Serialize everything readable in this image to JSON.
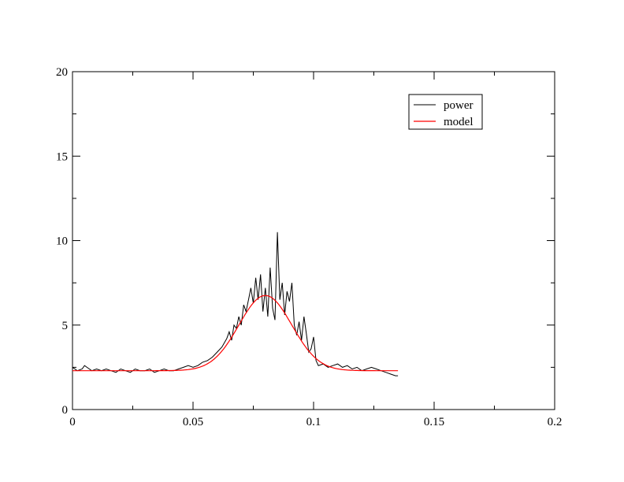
{
  "chart_data": {
    "type": "line",
    "title": "",
    "xlabel": "",
    "ylabel": "",
    "xlim": [
      0,
      0.2
    ],
    "ylim": [
      0,
      20
    ],
    "x_ticks": [
      0,
      0.05,
      0.1,
      0.15,
      0.2
    ],
    "x_tick_labels": [
      "0",
      "0.05",
      "0.1",
      "0.15",
      "0.2"
    ],
    "y_ticks": [
      0,
      5,
      10,
      15,
      20
    ],
    "y_tick_labels": [
      "0",
      "5",
      "10",
      "15",
      "20"
    ],
    "grid": false,
    "legend_position": "top-right",
    "series": [
      {
        "name": "power",
        "color": "#000000",
        "x": [
          0,
          0.002,
          0.004,
          0.005,
          0.006,
          0.008,
          0.01,
          0.012,
          0.014,
          0.016,
          0.018,
          0.02,
          0.022,
          0.024,
          0.026,
          0.028,
          0.03,
          0.032,
          0.034,
          0.036,
          0.038,
          0.04,
          0.042,
          0.044,
          0.046,
          0.048,
          0.05,
          0.052,
          0.054,
          0.056,
          0.058,
          0.06,
          0.062,
          0.064,
          0.065,
          0.066,
          0.067,
          0.068,
          0.069,
          0.07,
          0.071,
          0.072,
          0.073,
          0.074,
          0.075,
          0.076,
          0.077,
          0.078,
          0.079,
          0.08,
          0.081,
          0.082,
          0.083,
          0.084,
          0.085,
          0.086,
          0.087,
          0.088,
          0.089,
          0.09,
          0.091,
          0.092,
          0.093,
          0.094,
          0.095,
          0.096,
          0.097,
          0.098,
          0.099,
          0.1,
          0.101,
          0.102,
          0.104,
          0.106,
          0.108,
          0.11,
          0.112,
          0.114,
          0.116,
          0.118,
          0.12,
          0.122,
          0.124,
          0.126,
          0.128,
          0.13,
          0.132,
          0.134,
          0.135
        ],
        "y": [
          2.5,
          2.3,
          2.4,
          2.6,
          2.5,
          2.3,
          2.4,
          2.3,
          2.4,
          2.3,
          2.2,
          2.4,
          2.3,
          2.2,
          2.4,
          2.3,
          2.3,
          2.4,
          2.2,
          2.3,
          2.4,
          2.3,
          2.3,
          2.4,
          2.5,
          2.6,
          2.5,
          2.6,
          2.8,
          2.9,
          3.1,
          3.4,
          3.7,
          4.2,
          4.6,
          4.1,
          5.0,
          4.8,
          5.5,
          5.0,
          6.2,
          5.8,
          6.5,
          7.2,
          6.3,
          7.8,
          6.5,
          8.0,
          5.8,
          7.2,
          5.5,
          8.4,
          6.0,
          5.3,
          10.5,
          6.5,
          7.5,
          5.6,
          7.0,
          6.4,
          7.5,
          5.0,
          4.4,
          5.2,
          4.1,
          5.5,
          4.5,
          3.4,
          3.6,
          4.3,
          2.9,
          2.6,
          2.7,
          2.5,
          2.6,
          2.7,
          2.5,
          2.6,
          2.4,
          2.5,
          2.3,
          2.4,
          2.5,
          2.4,
          2.3,
          2.2,
          2.1,
          2.0,
          2.0
        ]
      },
      {
        "name": "model",
        "color": "#ff0000",
        "baseline": 2.3,
        "peak_height": 4.45,
        "peak_center": 0.08,
        "peak_width": 0.011,
        "x_start": 0,
        "x_end": 0.135
      }
    ]
  }
}
